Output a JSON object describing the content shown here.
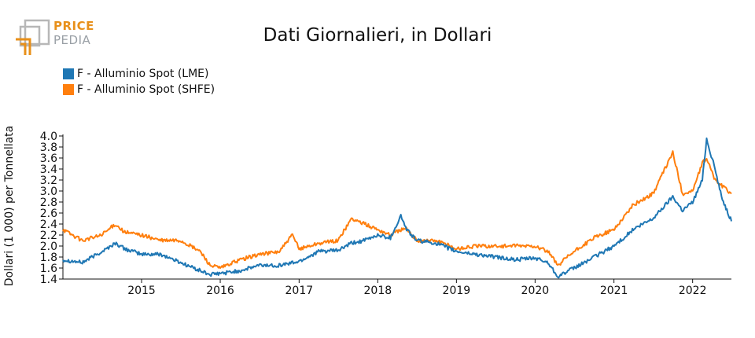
{
  "logo": {
    "text_line1": "PRICE",
    "text_line2": "PEDIA"
  },
  "chart_data": {
    "type": "line",
    "title": "Dati Giornalieri, in Dollari",
    "xlabel": "",
    "ylabel": "Dollari (1 000) per Tonnellata",
    "ylim": [
      1.4,
      4.0
    ],
    "xlim": [
      "2014-01-01",
      "2022-06-30"
    ],
    "x_ticks": [
      "2015",
      "2016",
      "2017",
      "2018",
      "2019",
      "2020",
      "2021",
      "2022"
    ],
    "y_ticks": [
      "1.4",
      "1.6",
      "1.8",
      "2.0",
      "2.2",
      "2.4",
      "2.6",
      "2.8",
      "3.0",
      "3.2",
      "3.4",
      "3.6",
      "3.8",
      "4.0"
    ],
    "grid": false,
    "legend_position": "top-left",
    "series": [
      {
        "name": "F - Alluminio Spot (LME)",
        "color": "#1f77b4",
        "x": [
          "2014-01-01",
          "2014-04-01",
          "2014-07-01",
          "2014-09-01",
          "2014-10-15",
          "2015-01-01",
          "2015-04-01",
          "2015-07-01",
          "2015-10-01",
          "2015-11-15",
          "2016-01-01",
          "2016-04-01",
          "2016-07-01",
          "2016-10-01",
          "2017-01-01",
          "2017-04-01",
          "2017-07-01",
          "2017-09-01",
          "2017-11-01",
          "2018-01-01",
          "2018-03-01",
          "2018-04-18",
          "2018-05-15",
          "2018-07-01",
          "2018-10-01",
          "2019-01-01",
          "2019-04-01",
          "2019-07-01",
          "2019-10-01",
          "2020-01-01",
          "2020-03-01",
          "2020-04-15",
          "2020-07-01",
          "2020-10-01",
          "2021-01-01",
          "2021-04-01",
          "2021-07-01",
          "2021-10-01",
          "2021-11-15",
          "2022-01-01",
          "2022-02-15",
          "2022-03-07",
          "2022-04-15",
          "2022-05-15",
          "2022-06-30"
        ],
        "values": [
          1.75,
          1.7,
          1.9,
          2.05,
          1.95,
          1.85,
          1.85,
          1.7,
          1.55,
          1.48,
          1.5,
          1.55,
          1.65,
          1.65,
          1.72,
          1.9,
          1.92,
          2.05,
          2.1,
          2.2,
          2.15,
          2.55,
          2.3,
          2.1,
          2.05,
          1.9,
          1.85,
          1.8,
          1.75,
          1.78,
          1.7,
          1.45,
          1.6,
          1.8,
          2.0,
          2.3,
          2.5,
          2.9,
          2.65,
          2.8,
          3.2,
          3.95,
          3.4,
          2.9,
          2.45
        ]
      },
      {
        "name": "F - Alluminio Spot (SHFE)",
        "color": "#ff7f0e",
        "x": [
          "2014-01-01",
          "2014-04-01",
          "2014-07-01",
          "2014-09-01",
          "2014-10-15",
          "2015-01-01",
          "2015-04-01",
          "2015-07-01",
          "2015-10-01",
          "2015-11-15",
          "2016-01-01",
          "2016-04-01",
          "2016-07-01",
          "2016-10-01",
          "2016-12-01",
          "2017-01-01",
          "2017-04-01",
          "2017-07-01",
          "2017-09-01",
          "2017-11-01",
          "2018-01-01",
          "2018-03-01",
          "2018-04-18",
          "2018-05-15",
          "2018-07-01",
          "2018-10-01",
          "2019-01-01",
          "2019-04-01",
          "2019-07-01",
          "2019-10-01",
          "2020-01-01",
          "2020-03-01",
          "2020-04-15",
          "2020-07-01",
          "2020-10-01",
          "2021-01-01",
          "2021-04-01",
          "2021-07-01",
          "2021-10-01",
          "2021-11-15",
          "2022-01-01",
          "2022-02-15",
          "2022-03-07",
          "2022-04-15",
          "2022-05-15",
          "2022-06-30"
        ],
        "values": [
          2.3,
          2.1,
          2.2,
          2.4,
          2.25,
          2.2,
          2.1,
          2.1,
          1.9,
          1.65,
          1.6,
          1.75,
          1.85,
          1.9,
          2.2,
          1.95,
          2.05,
          2.1,
          2.5,
          2.4,
          2.3,
          2.2,
          2.3,
          2.3,
          2.1,
          2.1,
          1.95,
          2.0,
          2.0,
          2.0,
          2.0,
          1.9,
          1.65,
          1.9,
          2.15,
          2.3,
          2.75,
          2.95,
          3.7,
          2.95,
          3.0,
          3.5,
          3.6,
          3.2,
          3.1,
          2.95
        ]
      }
    ]
  }
}
